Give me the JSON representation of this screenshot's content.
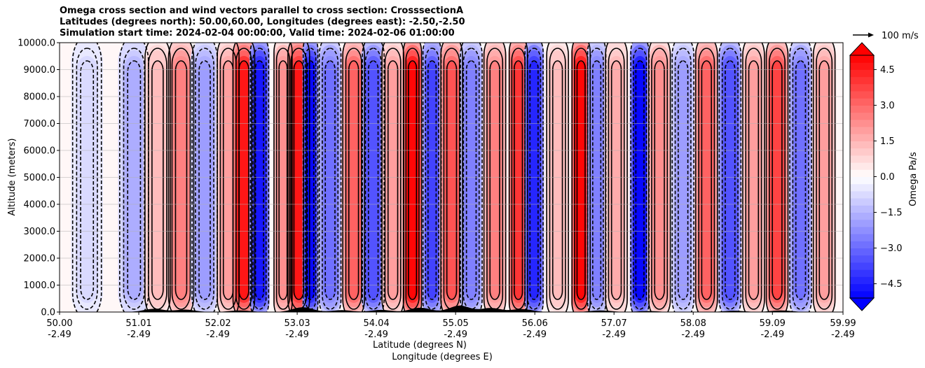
{
  "chart_data": {
    "type": "heatmap",
    "title_lines": [
      "Omega cross section and wind vectors parallel to cross section: CrosssectionA",
      "Latitudes (degrees north): 50.00,60.00, Longitudes (degrees east): -2.50,-2.50",
      "Simulation start time: 2024-02-04 00:00:00, Valid time: 2024-02-06 01:00:00"
    ],
    "ylabel": "Altitude (meters)",
    "xlabel_1": "Latitude (degrees N)",
    "xlabel_2": "Longitude (degrees E)",
    "xlim": [
      50.0,
      59.99
    ],
    "ylim": [
      0,
      10000
    ],
    "grid": "horizontal",
    "y_ticks": [
      "0.0",
      "1000.0",
      "2000.0",
      "3000.0",
      "4000.0",
      "5000.0",
      "6000.0",
      "7000.0",
      "8000.0",
      "9000.0",
      "10000.0"
    ],
    "x_ticks": [
      {
        "lat": "50.00",
        "lon": "-2.49"
      },
      {
        "lat": "51.01",
        "lon": "-2.49"
      },
      {
        "lat": "52.02",
        "lon": "-2.49"
      },
      {
        "lat": "53.03",
        "lon": "-2.49"
      },
      {
        "lat": "54.04",
        "lon": "-2.49"
      },
      {
        "lat": "55.05",
        "lon": "-2.49"
      },
      {
        "lat": "56.06",
        "lon": "-2.49"
      },
      {
        "lat": "57.07",
        "lon": "-2.49"
      },
      {
        "lat": "58.08",
        "lon": "-2.49"
      },
      {
        "lat": "59.09",
        "lon": "-2.49"
      },
      {
        "lat": "59.99",
        "lon": "-2.49"
      }
    ],
    "colorbar": {
      "label": "Omega Pa/s",
      "range": [
        -5.1,
        5.1
      ],
      "extend": "both",
      "ticks": [
        "4.5",
        "3.0",
        "1.5",
        "0.0",
        "−1.5",
        "−3.0",
        "−4.5"
      ],
      "colormap": "bwr"
    },
    "quiver_key": "100 m/s",
    "bands": [
      {
        "lat": 50.35,
        "w": 0.3,
        "v": -0.8
      },
      {
        "lat": 50.95,
        "w": 0.3,
        "v": -1.6
      },
      {
        "lat": 51.25,
        "w": 0.25,
        "v": 1.4
      },
      {
        "lat": 51.55,
        "w": 0.25,
        "v": 2.6
      },
      {
        "lat": 51.85,
        "w": 0.25,
        "v": -2.0
      },
      {
        "lat": 52.15,
        "w": 0.2,
        "v": 1.8
      },
      {
        "lat": 52.35,
        "w": 0.2,
        "v": 4.6
      },
      {
        "lat": 52.55,
        "w": 0.15,
        "v": -4.8
      },
      {
        "lat": 52.85,
        "w": 0.15,
        "v": 2.2
      },
      {
        "lat": 53.05,
        "w": 0.2,
        "v": 4.5
      },
      {
        "lat": 53.2,
        "w": 0.1,
        "v": -4.9
      },
      {
        "lat": 53.45,
        "w": 0.2,
        "v": -2.8
      },
      {
        "lat": 53.75,
        "w": 0.2,
        "v": 3.2
      },
      {
        "lat": 54.0,
        "w": 0.2,
        "v": -3.6
      },
      {
        "lat": 54.25,
        "w": 0.2,
        "v": 1.8
      },
      {
        "lat": 54.5,
        "w": 0.15,
        "v": 5.0
      },
      {
        "lat": 54.75,
        "w": 0.15,
        "v": -3.8
      },
      {
        "lat": 55.0,
        "w": 0.2,
        "v": 3.3
      },
      {
        "lat": 55.25,
        "w": 0.2,
        "v": -2.6
      },
      {
        "lat": 55.55,
        "w": 0.2,
        "v": 2.4
      },
      {
        "lat": 55.85,
        "w": 0.15,
        "v": 4.0
      },
      {
        "lat": 56.05,
        "w": 0.15,
        "v": -4.4
      },
      {
        "lat": 56.35,
        "w": 0.2,
        "v": 1.4
      },
      {
        "lat": 56.65,
        "w": 0.15,
        "v": 5.0
      },
      {
        "lat": 56.85,
        "w": 0.15,
        "v": -2.6
      },
      {
        "lat": 57.1,
        "w": 0.2,
        "v": 1.6
      },
      {
        "lat": 57.4,
        "w": 0.15,
        "v": -5.0
      },
      {
        "lat": 57.65,
        "w": 0.2,
        "v": 2.2
      },
      {
        "lat": 57.95,
        "w": 0.2,
        "v": -2.0
      },
      {
        "lat": 58.25,
        "w": 0.2,
        "v": 3.2
      },
      {
        "lat": 58.55,
        "w": 0.2,
        "v": -3.6
      },
      {
        "lat": 58.85,
        "w": 0.2,
        "v": 2.0
      },
      {
        "lat": 59.15,
        "w": 0.2,
        "v": 3.6
      },
      {
        "lat": 59.45,
        "w": 0.2,
        "v": -2.8
      },
      {
        "lat": 59.75,
        "w": 0.2,
        "v": 1.8
      }
    ]
  }
}
